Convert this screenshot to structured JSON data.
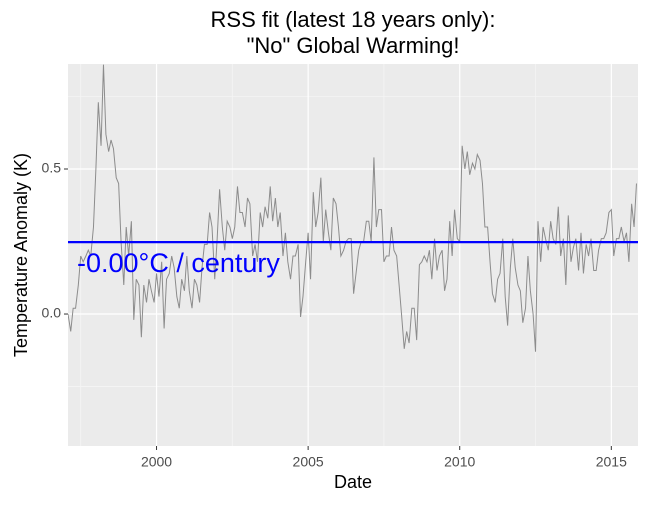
{
  "chart_data": {
    "type": "line",
    "title": [
      "RSS fit (latest 18 years only):",
      "\"No\" Global Warming!"
    ],
    "x_label": "Date",
    "y_label": "Temperature Anomaly (K)",
    "annotation": "-0.00°C / century",
    "xlim": [
      1997.08,
      2015.88
    ],
    "xticks": [
      2000,
      2005,
      2010,
      2015
    ],
    "x_minor_ticks": [
      1997.5,
      2002.5,
      2007.5,
      2012.5
    ],
    "ylim": [
      -0.455,
      0.862
    ],
    "yticks": [
      {
        "value": 0,
        "label": "0.0"
      },
      {
        "value": 0.5,
        "label": "0.5"
      }
    ],
    "y_minor_ticks": [
      -0.25,
      0.25,
      0.75
    ],
    "grid": true,
    "x": [
      1997.08,
      1997.17,
      1997.25,
      1997.33,
      1997.42,
      1997.5,
      1997.58,
      1997.67,
      1997.75,
      1997.83,
      1997.92,
      1998,
      1998.08,
      1998.17,
      1998.25,
      1998.33,
      1998.42,
      1998.5,
      1998.58,
      1998.67,
      1998.75,
      1998.83,
      1998.92,
      1999,
      1999.08,
      1999.17,
      1999.25,
      1999.33,
      1999.42,
      1999.5,
      1999.58,
      1999.67,
      1999.75,
      1999.83,
      1999.92,
      2000,
      2000.08,
      2000.17,
      2000.25,
      2000.33,
      2000.42,
      2000.5,
      2000.58,
      2000.67,
      2000.75,
      2000.83,
      2000.92,
      2001,
      2001.08,
      2001.17,
      2001.25,
      2001.33,
      2001.42,
      2001.5,
      2001.58,
      2001.67,
      2001.75,
      2001.83,
      2001.92,
      2002,
      2002.08,
      2002.17,
      2002.25,
      2002.33,
      2002.42,
      2002.5,
      2002.58,
      2002.67,
      2002.75,
      2002.83,
      2002.92,
      2003,
      2003.08,
      2003.17,
      2003.25,
      2003.33,
      2003.42,
      2003.5,
      2003.58,
      2003.67,
      2003.75,
      2003.83,
      2003.92,
      2004,
      2004.08,
      2004.17,
      2004.25,
      2004.33,
      2004.42,
      2004.5,
      2004.58,
      2004.67,
      2004.75,
      2004.83,
      2004.92,
      2005,
      2005.08,
      2005.17,
      2005.25,
      2005.33,
      2005.42,
      2005.5,
      2005.58,
      2005.67,
      2005.75,
      2005.83,
      2005.92,
      2006,
      2006.08,
      2006.17,
      2006.25,
      2006.33,
      2006.42,
      2006.5,
      2006.58,
      2006.67,
      2006.75,
      2006.83,
      2006.92,
      2007,
      2007.08,
      2007.17,
      2007.25,
      2007.33,
      2007.42,
      2007.5,
      2007.58,
      2007.67,
      2007.75,
      2007.83,
      2007.92,
      2008,
      2008.08,
      2008.17,
      2008.25,
      2008.33,
      2008.42,
      2008.5,
      2008.58,
      2008.67,
      2008.75,
      2008.83,
      2008.92,
      2009,
      2009.08,
      2009.17,
      2009.25,
      2009.33,
      2009.42,
      2009.5,
      2009.58,
      2009.67,
      2009.75,
      2009.83,
      2009.92,
      2010,
      2010.08,
      2010.17,
      2010.25,
      2010.33,
      2010.42,
      2010.5,
      2010.58,
      2010.67,
      2010.75,
      2010.83,
      2010.92,
      2011,
      2011.08,
      2011.17,
      2011.25,
      2011.33,
      2011.42,
      2011.5,
      2011.58,
      2011.67,
      2011.75,
      2011.83,
      2011.92,
      2012,
      2012.08,
      2012.17,
      2012.25,
      2012.33,
      2012.42,
      2012.5,
      2012.58,
      2012.67,
      2012.75,
      2012.83,
      2012.92,
      2013,
      2013.08,
      2013.17,
      2013.25,
      2013.33,
      2013.42,
      2013.5,
      2013.58,
      2013.67,
      2013.75,
      2013.83,
      2013.92,
      2014,
      2014.08,
      2014.17,
      2014.25,
      2014.33,
      2014.42,
      2014.5,
      2014.58,
      2014.67,
      2014.75,
      2014.83,
      2014.92,
      2015,
      2015.08,
      2015.17,
      2015.25,
      2015.33,
      2015.42,
      2015.5,
      2015.58,
      2015.67,
      2015.75,
      2015.83
    ],
    "series": [
      {
        "color": "#8c8c8c",
        "values": [
          0.0,
          -0.06,
          0.02,
          0.02,
          0.1,
          0.2,
          0.18,
          0.2,
          0.22,
          0.2,
          0.3,
          0.5,
          0.73,
          0.58,
          0.86,
          0.62,
          0.56,
          0.6,
          0.57,
          0.47,
          0.45,
          0.25,
          0.1,
          0.3,
          0.2,
          0.32,
          -0.02,
          0.12,
          0.1,
          -0.08,
          0.1,
          0.04,
          0.12,
          0.08,
          0.04,
          0.14,
          0.06,
          0.18,
          -0.05,
          0.12,
          0.14,
          0.2,
          0.16,
          0.06,
          0.02,
          0.12,
          0.08,
          0.2,
          0.08,
          0.02,
          0.12,
          0.1,
          0.04,
          0.16,
          0.24,
          0.24,
          0.35,
          0.3,
          0.12,
          0.26,
          0.43,
          0.3,
          0.22,
          0.32,
          0.3,
          0.26,
          0.3,
          0.44,
          0.35,
          0.35,
          0.3,
          0.4,
          0.38,
          0.2,
          0.24,
          0.18,
          0.35,
          0.3,
          0.37,
          0.33,
          0.44,
          0.32,
          0.4,
          0.3,
          0.35,
          0.2,
          0.28,
          0.18,
          0.12,
          0.2,
          0.2,
          0.24,
          -0.01,
          0.06,
          0.18,
          0.28,
          0.12,
          0.42,
          0.3,
          0.35,
          0.47,
          0.25,
          0.36,
          0.28,
          0.22,
          0.4,
          0.38,
          0.3,
          0.2,
          0.22,
          0.25,
          0.26,
          0.26,
          0.07,
          0.14,
          0.22,
          0.25,
          0.25,
          0.32,
          0.32,
          0.25,
          0.54,
          0.3,
          0.36,
          0.36,
          0.18,
          0.2,
          0.2,
          0.3,
          0.22,
          0.2,
          0.1,
          0.0,
          -0.12,
          -0.06,
          -0.1,
          0.02,
          0.02,
          -0.09,
          0.17,
          0.18,
          0.2,
          0.18,
          0.22,
          0.12,
          0.26,
          0.15,
          0.2,
          0.22,
          0.08,
          0.12,
          0.32,
          0.2,
          0.36,
          0.26,
          0.25,
          0.58,
          0.5,
          0.56,
          0.48,
          0.52,
          0.5,
          0.55,
          0.53,
          0.45,
          0.3,
          0.3,
          0.18,
          0.07,
          0.04,
          0.12,
          0.14,
          0.26,
          0.06,
          -0.04,
          0.16,
          0.26,
          0.16,
          0.1,
          0.08,
          -0.03,
          0.02,
          0.2,
          0.08,
          0.0,
          -0.13,
          0.32,
          0.18,
          0.3,
          0.26,
          0.22,
          0.32,
          0.26,
          0.24,
          0.37,
          0.2,
          0.26,
          0.1,
          0.34,
          0.18,
          0.23,
          0.26,
          0.15,
          0.28,
          0.14,
          0.24,
          0.2,
          0.26,
          0.15,
          0.15,
          0.22,
          0.26,
          0.26,
          0.28,
          0.35,
          0.36,
          0.2,
          0.26,
          0.26,
          0.3,
          0.25,
          0.28,
          0.18,
          0.38,
          0.3,
          0.45
        ]
      }
    ],
    "trend": {
      "color": "#0000ff",
      "x": [
        1997.08,
        2015.88
      ],
      "values": [
        0.248,
        0.248
      ]
    }
  }
}
